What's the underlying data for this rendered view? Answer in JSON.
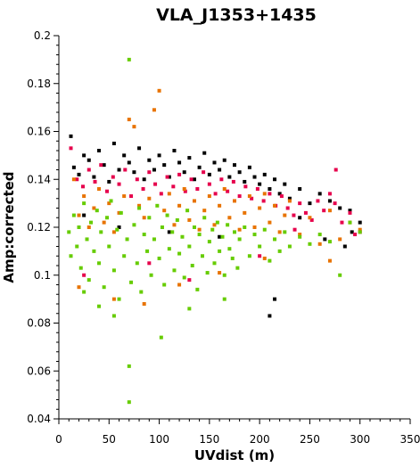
{
  "chart_data": {
    "type": "scatter",
    "title": "VLA_J1353+1435",
    "xlabel": "UVdist (m)",
    "ylabel": "Amp:corrected",
    "xlim": [
      0,
      350
    ],
    "ylim": [
      0.04,
      0.2
    ],
    "x_ticks": [
      "0",
      "50",
      "100",
      "150",
      "200",
      "250",
      "300",
      "350"
    ],
    "y_ticks": [
      "0.04",
      "0.06",
      "0.08",
      "0.1",
      "0.12",
      "0.14",
      "0.16",
      "0.18",
      "0.2"
    ],
    "grid": false,
    "legend": "none",
    "series": [
      {
        "color": "#000000",
        "points": [
          [
            12,
            0.158
          ],
          [
            15,
            0.145
          ],
          [
            20,
            0.142
          ],
          [
            25,
            0.15
          ],
          [
            30,
            0.148
          ],
          [
            35,
            0.141
          ],
          [
            40,
            0.152
          ],
          [
            45,
            0.146
          ],
          [
            50,
            0.139
          ],
          [
            55,
            0.155
          ],
          [
            60,
            0.144
          ],
          [
            65,
            0.15
          ],
          [
            70,
            0.147
          ],
          [
            75,
            0.143
          ],
          [
            80,
            0.153
          ],
          [
            85,
            0.14
          ],
          [
            90,
            0.148
          ],
          [
            95,
            0.144
          ],
          [
            100,
            0.15
          ],
          [
            105,
            0.146
          ],
          [
            110,
            0.141
          ],
          [
            115,
            0.152
          ],
          [
            120,
            0.147
          ],
          [
            125,
            0.143
          ],
          [
            130,
            0.149
          ],
          [
            135,
            0.14
          ],
          [
            140,
            0.145
          ],
          [
            145,
            0.151
          ],
          [
            150,
            0.142
          ],
          [
            155,
            0.147
          ],
          [
            160,
            0.144
          ],
          [
            165,
            0.148
          ],
          [
            170,
            0.141
          ],
          [
            175,
            0.146
          ],
          [
            180,
            0.143
          ],
          [
            185,
            0.139
          ],
          [
            190,
            0.145
          ],
          [
            195,
            0.141
          ],
          [
            200,
            0.138
          ],
          [
            205,
            0.142
          ],
          [
            210,
            0.136
          ],
          [
            215,
            0.14
          ],
          [
            220,
            0.134
          ],
          [
            225,
            0.138
          ],
          [
            230,
            0.132
          ],
          [
            240,
            0.136
          ],
          [
            250,
            0.13
          ],
          [
            260,
            0.134
          ],
          [
            270,
            0.131
          ],
          [
            280,
            0.128
          ],
          [
            290,
            0.127
          ],
          [
            300,
            0.122
          ],
          [
            25,
            0.125
          ],
          [
            60,
            0.12
          ],
          [
            110,
            0.118
          ],
          [
            160,
            0.116
          ],
          [
            210,
            0.083
          ],
          [
            215,
            0.09
          ],
          [
            240,
            0.124
          ],
          [
            265,
            0.115
          ],
          [
            285,
            0.112
          ],
          [
            292,
            0.118
          ]
        ]
      },
      {
        "color": "#e6004c",
        "points": [
          [
            12,
            0.153
          ],
          [
            18,
            0.14
          ],
          [
            24,
            0.137
          ],
          [
            30,
            0.144
          ],
          [
            36,
            0.139
          ],
          [
            42,
            0.146
          ],
          [
            48,
            0.135
          ],
          [
            54,
            0.141
          ],
          [
            60,
            0.138
          ],
          [
            66,
            0.144
          ],
          [
            72,
            0.133
          ],
          [
            78,
            0.14
          ],
          [
            84,
            0.136
          ],
          [
            90,
            0.143
          ],
          [
            96,
            0.138
          ],
          [
            102,
            0.134
          ],
          [
            108,
            0.141
          ],
          [
            114,
            0.137
          ],
          [
            120,
            0.142
          ],
          [
            126,
            0.135
          ],
          [
            132,
            0.14
          ],
          [
            138,
            0.136
          ],
          [
            144,
            0.143
          ],
          [
            150,
            0.138
          ],
          [
            156,
            0.134
          ],
          [
            162,
            0.14
          ],
          [
            168,
            0.135
          ],
          [
            174,
            0.139
          ],
          [
            180,
            0.133
          ],
          [
            186,
            0.137
          ],
          [
            192,
            0.132
          ],
          [
            198,
            0.136
          ],
          [
            204,
            0.131
          ],
          [
            210,
            0.134
          ],
          [
            216,
            0.129
          ],
          [
            222,
            0.133
          ],
          [
            228,
            0.128
          ],
          [
            234,
            0.125
          ],
          [
            240,
            0.13
          ],
          [
            246,
            0.126
          ],
          [
            252,
            0.123
          ],
          [
            258,
            0.131
          ],
          [
            264,
            0.127
          ],
          [
            270,
            0.134
          ],
          [
            276,
            0.144
          ],
          [
            282,
            0.122
          ],
          [
            290,
            0.126
          ],
          [
            300,
            0.118
          ],
          [
            25,
            0.1
          ],
          [
            90,
            0.105
          ],
          [
            130,
            0.098
          ],
          [
            200,
            0.108
          ],
          [
            235,
            0.119
          ],
          [
            275,
            0.13
          ],
          [
            295,
            0.117
          ]
        ]
      },
      {
        "color": "#e87300",
        "points": [
          [
            15,
            0.14
          ],
          [
            20,
            0.125
          ],
          [
            25,
            0.133
          ],
          [
            30,
            0.12
          ],
          [
            35,
            0.128
          ],
          [
            40,
            0.136
          ],
          [
            45,
            0.122
          ],
          [
            50,
            0.13
          ],
          [
            55,
            0.118
          ],
          [
            60,
            0.126
          ],
          [
            65,
            0.133
          ],
          [
            70,
            0.165
          ],
          [
            75,
            0.162
          ],
          [
            80,
            0.129
          ],
          [
            85,
            0.124
          ],
          [
            90,
            0.132
          ],
          [
            95,
            0.169
          ],
          [
            100,
            0.177
          ],
          [
            105,
            0.127
          ],
          [
            110,
            0.134
          ],
          [
            115,
            0.121
          ],
          [
            120,
            0.129
          ],
          [
            125,
            0.136
          ],
          [
            130,
            0.123
          ],
          [
            135,
            0.131
          ],
          [
            140,
            0.119
          ],
          [
            145,
            0.127
          ],
          [
            150,
            0.133
          ],
          [
            155,
            0.121
          ],
          [
            160,
            0.129
          ],
          [
            165,
            0.136
          ],
          [
            170,
            0.124
          ],
          [
            175,
            0.131
          ],
          [
            180,
            0.119
          ],
          [
            185,
            0.126
          ],
          [
            190,
            0.133
          ],
          [
            195,
            0.12
          ],
          [
            200,
            0.128
          ],
          [
            205,
            0.134
          ],
          [
            210,
            0.122
          ],
          [
            215,
            0.129
          ],
          [
            220,
            0.118
          ],
          [
            225,
            0.125
          ],
          [
            230,
            0.131
          ],
          [
            240,
            0.117
          ],
          [
            250,
            0.124
          ],
          [
            260,
            0.113
          ],
          [
            270,
            0.127
          ],
          [
            280,
            0.115
          ],
          [
            290,
            0.122
          ],
          [
            300,
            0.119
          ],
          [
            20,
            0.095
          ],
          [
            55,
            0.09
          ],
          [
            85,
            0.088
          ],
          [
            120,
            0.096
          ],
          [
            160,
            0.101
          ],
          [
            205,
            0.107
          ],
          [
            270,
            0.106
          ]
        ]
      },
      {
        "color": "#66cc00",
        "points": [
          [
            10,
            0.118
          ],
          [
            12,
            0.108
          ],
          [
            15,
            0.125
          ],
          [
            18,
            0.112
          ],
          [
            20,
            0.12
          ],
          [
            22,
            0.103
          ],
          [
            25,
            0.13
          ],
          [
            28,
            0.115
          ],
          [
            30,
            0.098
          ],
          [
            32,
            0.122
          ],
          [
            35,
            0.11
          ],
          [
            38,
            0.127
          ],
          [
            40,
            0.105
          ],
          [
            42,
            0.118
          ],
          [
            45,
            0.095
          ],
          [
            48,
            0.124
          ],
          [
            50,
            0.112
          ],
          [
            52,
            0.131
          ],
          [
            55,
            0.102
          ],
          [
            58,
            0.119
          ],
          [
            60,
            0.09
          ],
          [
            62,
            0.126
          ],
          [
            65,
            0.108
          ],
          [
            68,
            0.115
          ],
          [
            70,
            0.19
          ],
          [
            70,
            0.062
          ],
          [
            70,
            0.047
          ],
          [
            72,
            0.097
          ],
          [
            75,
            0.121
          ],
          [
            78,
            0.105
          ],
          [
            80,
            0.128
          ],
          [
            82,
            0.093
          ],
          [
            85,
            0.117
          ],
          [
            88,
            0.11
          ],
          [
            90,
            0.124
          ],
          [
            92,
            0.1
          ],
          [
            95,
            0.115
          ],
          [
            98,
            0.129
          ],
          [
            100,
            0.107
          ],
          [
            103,
            0.12
          ],
          [
            105,
            0.096
          ],
          [
            108,
            0.125
          ],
          [
            110,
            0.111
          ],
          [
            113,
            0.118
          ],
          [
            115,
            0.102
          ],
          [
            118,
            0.123
          ],
          [
            120,
            0.109
          ],
          [
            123,
            0.116
          ],
          [
            125,
            0.099
          ],
          [
            128,
            0.127
          ],
          [
            130,
            0.112
          ],
          [
            133,
            0.104
          ],
          [
            135,
            0.12
          ],
          [
            138,
            0.094
          ],
          [
            140,
            0.117
          ],
          [
            143,
            0.108
          ],
          [
            145,
            0.124
          ],
          [
            148,
            0.101
          ],
          [
            150,
            0.114
          ],
          [
            153,
            0.119
          ],
          [
            155,
            0.105
          ],
          [
            158,
            0.122
          ],
          [
            160,
            0.11
          ],
          [
            163,
            0.116
          ],
          [
            165,
            0.1
          ],
          [
            168,
            0.121
          ],
          [
            170,
            0.111
          ],
          [
            173,
            0.107
          ],
          [
            175,
            0.118
          ],
          [
            178,
            0.103
          ],
          [
            180,
            0.115
          ],
          [
            185,
            0.12
          ],
          [
            190,
            0.108
          ],
          [
            195,
            0.117
          ],
          [
            200,
            0.112
          ],
          [
            205,
            0.119
          ],
          [
            210,
            0.106
          ],
          [
            215,
            0.115
          ],
          [
            220,
            0.11
          ],
          [
            225,
            0.118
          ],
          [
            230,
            0.112
          ],
          [
            240,
            0.116
          ],
          [
            250,
            0.113
          ],
          [
            260,
            0.117
          ],
          [
            270,
            0.114
          ],
          [
            280,
            0.1
          ],
          [
            290,
            0.122
          ],
          [
            300,
            0.118
          ],
          [
            102,
            0.074
          ],
          [
            55,
            0.083
          ],
          [
            40,
            0.087
          ],
          [
            130,
            0.086
          ],
          [
            165,
            0.09
          ],
          [
            25,
            0.093
          ]
        ]
      }
    ]
  }
}
